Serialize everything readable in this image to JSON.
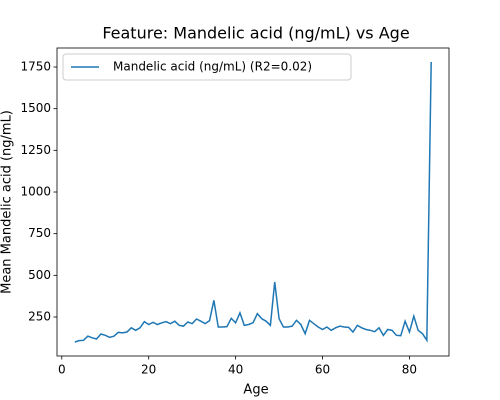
{
  "chart_data": {
    "type": "line",
    "title": "Feature: Mandelic acid (ng/mL) vs Age",
    "x_label": "Age",
    "y_label": "Mean Mandelic acid (ng/mL)",
    "x": [
      3,
      4,
      5,
      6,
      7,
      8,
      9,
      10,
      11,
      12,
      13,
      14,
      15,
      16,
      17,
      18,
      19,
      20,
      21,
      22,
      23,
      24,
      25,
      26,
      27,
      28,
      29,
      30,
      31,
      32,
      33,
      34,
      35,
      36,
      37,
      38,
      39,
      40,
      41,
      42,
      43,
      44,
      45,
      46,
      47,
      48,
      49,
      50,
      51,
      52,
      53,
      54,
      55,
      56,
      57,
      58,
      59,
      60,
      61,
      62,
      63,
      64,
      65,
      66,
      67,
      68,
      69,
      70,
      71,
      72,
      73,
      74,
      75,
      76,
      77,
      78,
      79,
      80,
      81,
      82,
      83,
      84,
      85
    ],
    "series": [
      {
        "name": "Mandelic acid (ng/mL) (R2=0.02)",
        "color": "#1f77b4",
        "values": [
          100,
          108,
          110,
          135,
          125,
          118,
          148,
          140,
          128,
          135,
          158,
          155,
          160,
          185,
          170,
          185,
          222,
          205,
          218,
          205,
          215,
          222,
          210,
          225,
          200,
          195,
          220,
          210,
          238,
          225,
          210,
          228,
          350,
          190,
          190,
          192,
          242,
          215,
          275,
          200,
          205,
          215,
          270,
          240,
          225,
          200,
          460,
          240,
          190,
          190,
          195,
          230,
          205,
          150,
          230,
          210,
          190,
          175,
          190,
          170,
          185,
          195,
          190,
          188,
          160,
          200,
          185,
          175,
          170,
          162,
          185,
          140,
          175,
          170,
          140,
          138,
          225,
          160,
          255,
          170,
          150,
          110,
          1780
        ]
      }
    ],
    "xlim": [
      -1.1,
      89.1
    ],
    "xticks": [
      0,
      20,
      40,
      60,
      80
    ],
    "ylim": [
      16,
      1864
    ],
    "yticks": [
      250,
      500,
      750,
      1000,
      1250,
      1500,
      1750
    ],
    "legend": "upper left",
    "grid": false
  }
}
